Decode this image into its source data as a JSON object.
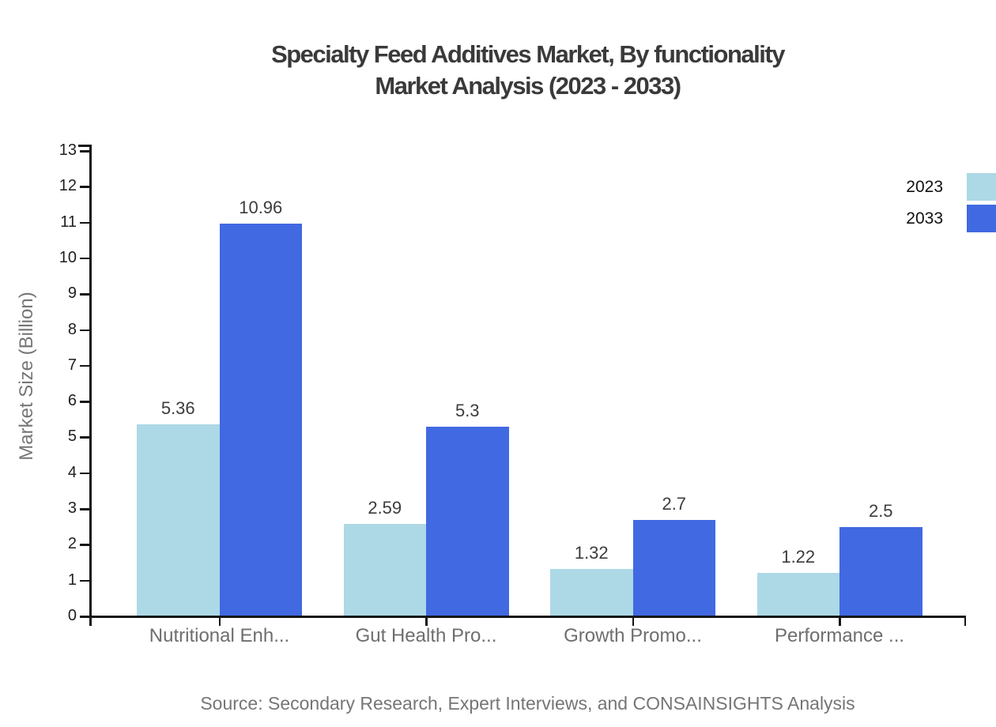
{
  "title": {
    "line1": "Specialty Feed Additives Market, By functionality",
    "line2": "Market Analysis (2023 - 2033)"
  },
  "legend": {
    "items": [
      {
        "label": "2023",
        "color": "#ADD8E6"
      },
      {
        "label": "2033",
        "color": "#4169E1"
      }
    ]
  },
  "chart_data": {
    "type": "bar",
    "title": "Specialty Feed Additives Market, By functionality Market Analysis (2023 - 2033)",
    "categories": [
      "Nutritional Enh...",
      "Gut Health Pro...",
      "Growth Promo...",
      "Performance ..."
    ],
    "series": [
      {
        "name": "2023",
        "color": "#ADD8E6",
        "values": [
          5.36,
          2.59,
          1.32,
          1.22
        ]
      },
      {
        "name": "2033",
        "color": "#4169E1",
        "values": [
          10.96,
          5.3,
          2.7,
          2.5
        ]
      }
    ],
    "xlabel": "",
    "ylabel": "Market Size (Billion)",
    "ylim": [
      0,
      13
    ],
    "ytick_step": 1,
    "grid": false,
    "legend_position": "top-right",
    "bar_value_labels": true
  },
  "source": {
    "text": "Source: Secondary Research, Expert Interviews, and CONSAINSIGHTS Analysis"
  },
  "colors": {
    "series_2023": "#ADD8E6",
    "series_2033": "#4169E1",
    "axis": "#161616",
    "title_text": "#3a3a3a",
    "tick_text": "#1f1f1f",
    "category_text": "#6e6e6e",
    "value_text": "#3c3c3c",
    "source_text": "#757575"
  }
}
